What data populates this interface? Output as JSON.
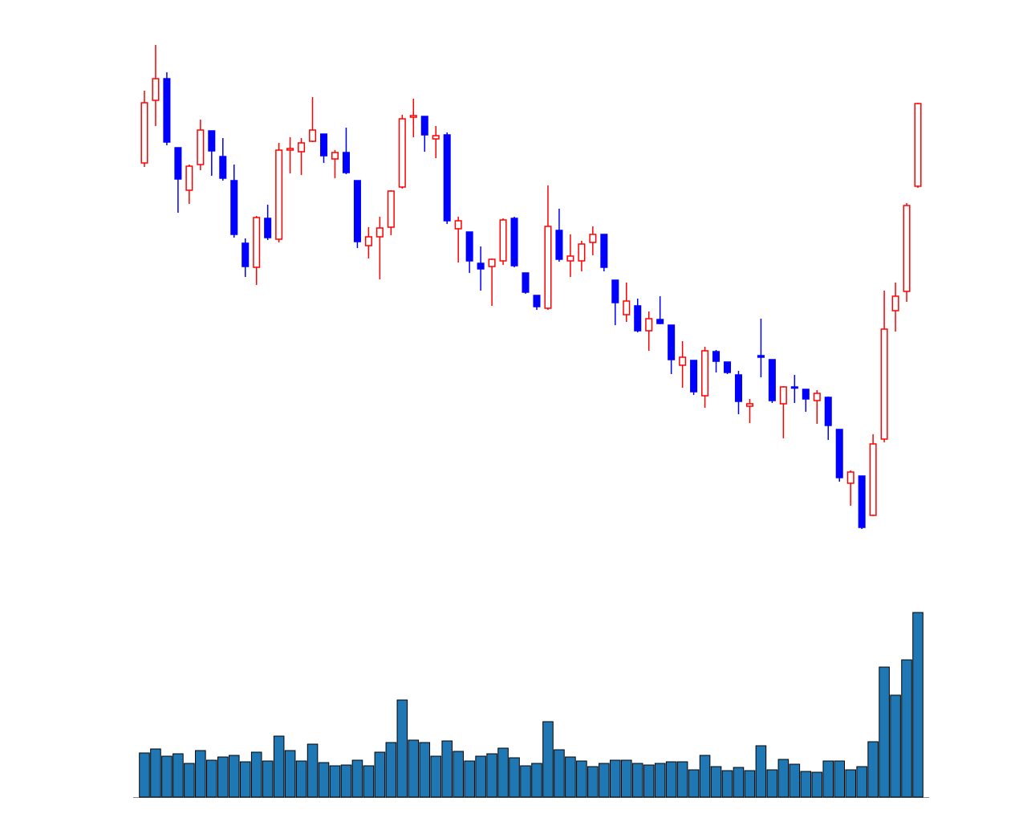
{
  "chart_data": {
    "type": "candlestick",
    "open": [
      477,
      555,
      582,
      496,
      443,
      475,
      517,
      485,
      455,
      377,
      347,
      408,
      382,
      493,
      491,
      504,
      513,
      482,
      490,
      455,
      374,
      385,
      397,
      447,
      534,
      535,
      507,
      512,
      395,
      391,
      352,
      348,
      355,
      408,
      340,
      312,
      296,
      393,
      355,
      355,
      378,
      388,
      331,
      288,
      299,
      268,
      282,
      275,
      225,
      231,
      187,
      242,
      229,
      213,
      174,
      237,
      232,
      177,
      198,
      195,
      181,
      185,
      145,
      78,
      87,
      38,
      133,
      293,
      317,
      448
    ],
    "high": [
      567,
      624,
      590,
      496,
      475,
      531,
      517,
      508,
      475,
      383,
      411,
      425,
      502,
      509,
      508,
      559,
      513,
      493,
      521,
      455,
      397,
      410,
      443,
      537,
      557,
      535,
      523,
      515,
      410,
      391,
      373,
      358,
      408,
      410,
      340,
      312,
      449,
      420,
      388,
      380,
      398,
      388,
      331,
      328,
      308,
      292,
      311,
      275,
      255,
      231,
      248,
      244,
      229,
      218,
      183,
      283,
      232,
      199,
      213,
      195,
      194,
      186,
      145,
      94,
      87,
      139,
      318,
      328,
      427,
      552
    ],
    "low": [
      472,
      523,
      499,
      415,
      426,
      468,
      461,
      455,
      384,
      335,
      325,
      381,
      378,
      464,
      462,
      503,
      477,
      458,
      463,
      371,
      358,
      332,
      387,
      445,
      509,
      491,
      483,
      401,
      353,
      340,
      318,
      299,
      350,
      347,
      314,
      294,
      294,
      354,
      335,
      342,
      362,
      342,
      275,
      279,
      266,
      243,
      276,
      214,
      197,
      188,
      172,
      216,
      214,
      164,
      153,
      210,
      178,
      134,
      178,
      167,
      152,
      132,
      80,
      50,
      21,
      37,
      129,
      267,
      304,
      446
    ],
    "close": [
      552,
      582,
      503,
      457,
      473,
      518,
      492,
      458,
      388,
      348,
      409,
      384,
      493,
      495,
      502,
      518,
      486,
      490,
      465,
      379,
      385,
      396,
      442,
      532,
      536,
      512,
      511,
      405,
      405,
      355,
      345,
      357,
      406,
      349,
      316,
      298,
      398,
      357,
      361,
      376,
      388,
      347,
      303,
      305,
      268,
      283,
      277,
      232,
      235,
      192,
      243,
      230,
      216,
      180,
      177,
      235,
      181,
      198,
      197,
      183,
      190,
      150,
      85,
      92,
      23,
      127,
      270,
      311,
      424,
      551
    ],
    "volume": [
      55,
      60,
      51,
      54,
      42,
      58,
      46,
      50,
      52,
      44,
      56,
      45,
      76,
      58,
      45,
      66,
      43,
      39,
      40,
      46,
      39,
      56,
      68,
      121,
      71,
      68,
      51,
      70,
      57,
      45,
      51,
      54,
      61,
      49,
      39,
      42,
      94,
      59,
      50,
      45,
      38,
      42,
      46,
      46,
      42,
      40,
      42,
      44,
      44,
      34,
      52,
      38,
      33,
      37,
      33,
      64,
      34,
      47,
      41,
      32,
      31,
      45,
      45,
      34,
      38,
      69,
      162,
      127,
      171,
      230
    ],
    "up_color": "#ff0000",
    "down_color": "#0000ff",
    "volume_color": "#1f77b4",
    "ylim": [
      0,
      650
    ],
    "volume_ylim": [
      0,
      250
    ]
  }
}
